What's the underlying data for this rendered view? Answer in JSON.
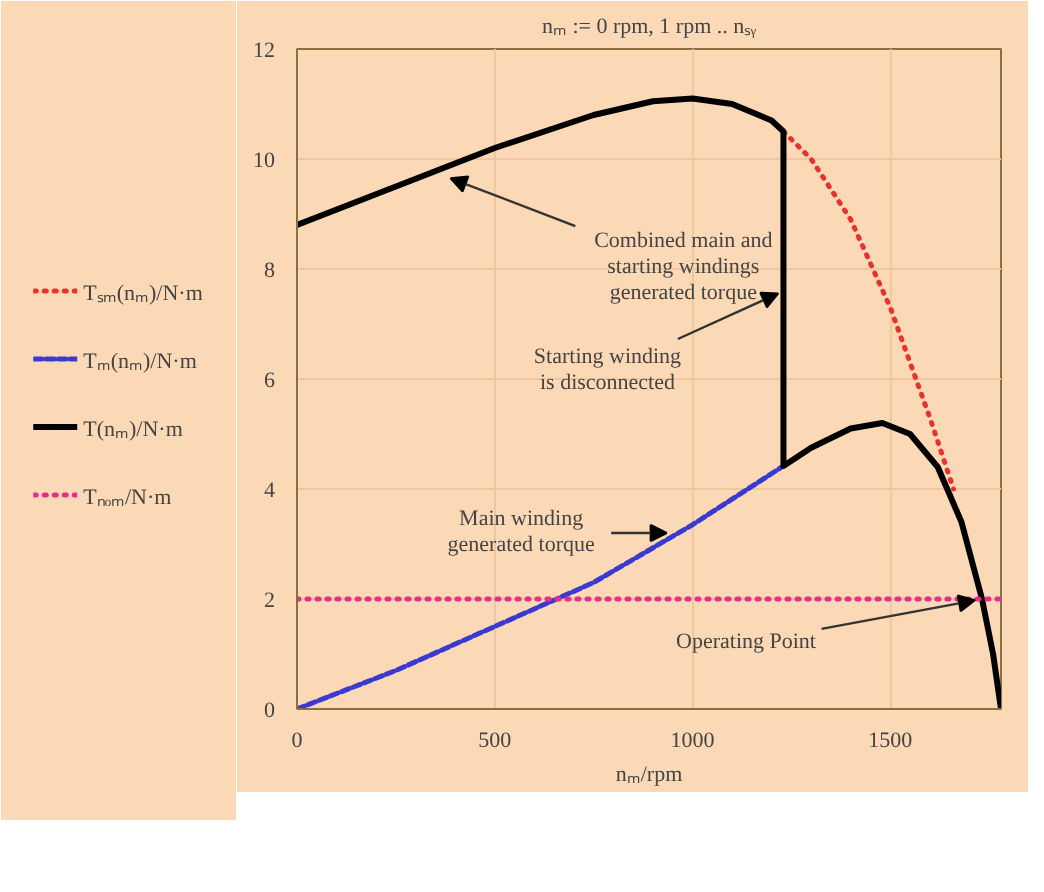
{
  "chart_data": {
    "type": "line",
    "title": "nₘ := 0 rpm, 1 rpm .. nₛᵧ",
    "xlabel": "nₘ/rpm",
    "xlim": [
      0,
      1780
    ],
    "ylim": [
      0,
      12
    ],
    "xticks": [
      0,
      500,
      1000,
      1500
    ],
    "yticks": [
      0,
      2,
      4,
      6,
      8,
      10,
      12
    ],
    "grid": true,
    "legend": "left",
    "marker": "none",
    "series": [
      {
        "name": "Tₛₘ(nₘ)/N·m",
        "color": "#e8322c",
        "line_style": "dotted",
        "x": [
          1230,
          1300,
          1400,
          1500,
          1600,
          1660
        ],
        "values": [
          10.5,
          10.0,
          8.9,
          7.3,
          5.3,
          4.0
        ]
      },
      {
        "name": "Tₘ(nₘ)/N·m",
        "color": "#3a3ad0",
        "line_style": "dashed",
        "x": [
          0,
          250,
          500,
          750,
          1000,
          1230
        ],
        "values": [
          0,
          0.7,
          1.5,
          2.3,
          3.35,
          4.42
        ]
      },
      {
        "name": "T(nₘ)/N·m",
        "color": "#000000",
        "line_style": "solid",
        "x": [
          0,
          250,
          500,
          750,
          900,
          1000,
          1100,
          1200,
          1230,
          1230,
          1300,
          1400,
          1480,
          1550,
          1620,
          1680,
          1732,
          1760,
          1780
        ],
        "values": [
          8.8,
          9.5,
          10.2,
          10.8,
          11.05,
          11.1,
          11.0,
          10.7,
          10.5,
          4.42,
          4.75,
          5.1,
          5.2,
          5.0,
          4.4,
          3.4,
          2.0,
          1.0,
          0
        ]
      },
      {
        "name": "Tₙₒₘ/N·m",
        "color": "#e0308a",
        "line_style": "dotted",
        "x": [
          0,
          1780
        ],
        "values": [
          2,
          2
        ]
      }
    ],
    "annotations": [
      {
        "text": "Combined main and\nstarting windings\ngenerated torque",
        "x": 370,
        "y": 9.7
      },
      {
        "text": "Starting winding\nis disconnected",
        "x": 1230,
        "y": 7.6
      },
      {
        "text": "Main winding\ngenerated torque",
        "x": 946,
        "y": 3.2
      },
      {
        "text": "Operating Point",
        "x": 1732,
        "y": 2
      }
    ]
  }
}
